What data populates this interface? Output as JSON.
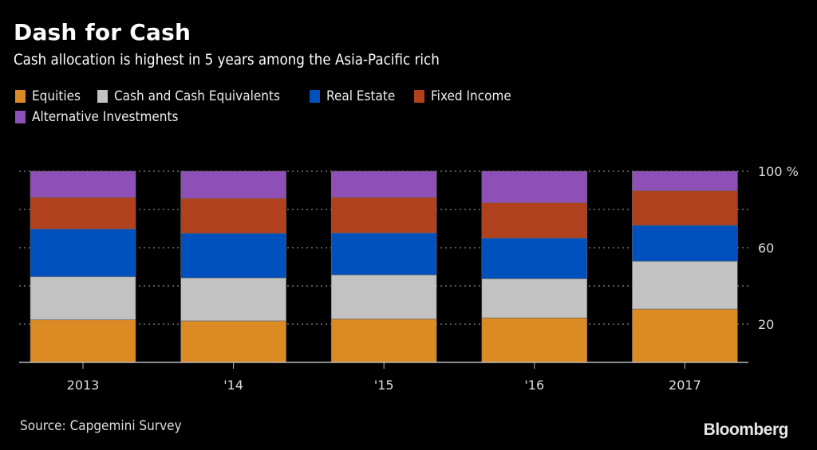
{
  "header": {
    "title": "Dash for Cash",
    "subtitle": "Cash allocation is highest in 5 years among the Asia-Pacific rich"
  },
  "legend": {
    "items": [
      {
        "label": "Equities",
        "color": "#dc8a23"
      },
      {
        "label": "Cash and Cash Equivalents",
        "color": "#c2c2c2"
      },
      {
        "label": "Real Estate",
        "color": "#0050bd"
      },
      {
        "label": "Fixed Income",
        "color": "#b1401d"
      },
      {
        "label": "Alternative Investments",
        "color": "#8e4fb7"
      }
    ]
  },
  "footer": {
    "source": "Source: Capgemini Survey",
    "brand": "Bloomberg"
  },
  "chart_data": {
    "type": "bar",
    "stacked": true,
    "title": "Dash for Cash",
    "subtitle": "Cash allocation is highest in 5 years among the Asia-Pacific rich",
    "xlabel": "",
    "ylabel": "",
    "categories": [
      "2013",
      "'14",
      "'15",
      "'16",
      "2017"
    ],
    "series": [
      {
        "name": "Equities",
        "color": "#dc8a23",
        "values": [
          22.3,
          21.7,
          22.7,
          23.3,
          27.9
        ]
      },
      {
        "name": "Cash and Cash Equivalents",
        "color": "#c2c2c2",
        "values": [
          22.5,
          22.5,
          23.1,
          20.5,
          25.0
        ]
      },
      {
        "name": "Real Estate",
        "color": "#0050bd",
        "values": [
          25.0,
          23.3,
          21.9,
          21.2,
          18.8
        ]
      },
      {
        "name": "Fixed Income",
        "color": "#b1401d",
        "values": [
          16.5,
          18.3,
          18.6,
          18.5,
          18.1
        ]
      },
      {
        "name": "Alternative Investments",
        "color": "#8e4fb7",
        "values": [
          13.7,
          14.2,
          13.7,
          16.5,
          10.2
        ]
      }
    ],
    "ylim": [
      0,
      100
    ],
    "yticks": [
      20,
      60,
      100
    ],
    "ytick_labels": [
      "20",
      "60",
      "100 %"
    ],
    "gridlines": [
      20,
      40,
      60,
      80,
      100
    ],
    "grid": true,
    "grid_style": "dotted",
    "yaxis_position": "right",
    "legend_position": "top-left"
  }
}
